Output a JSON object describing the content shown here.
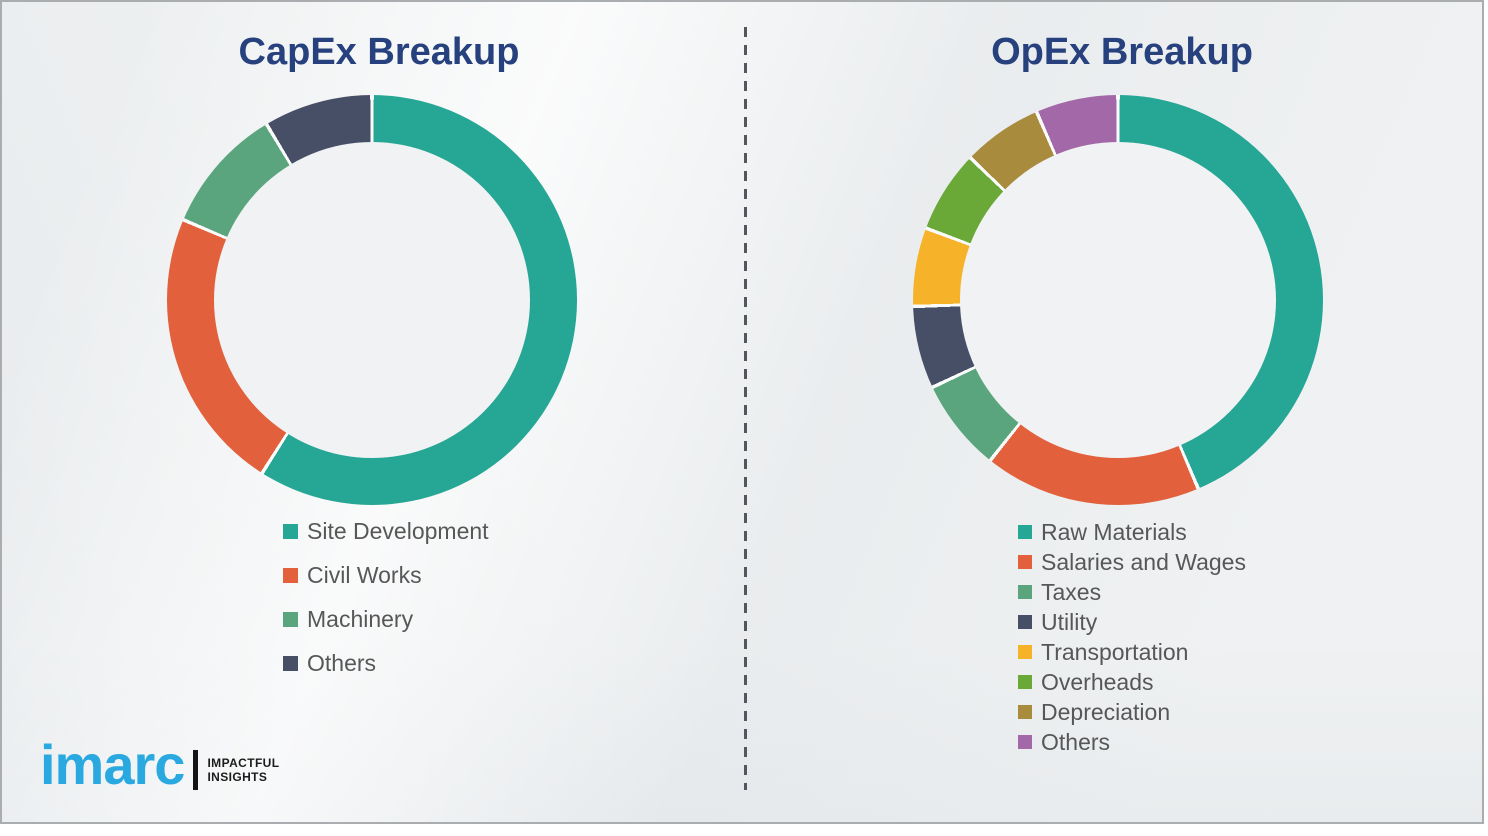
{
  "chart_data": [
    {
      "type": "pie",
      "subtype": "donut",
      "title": "CapEx Breakup",
      "labels": [
        "Site Development",
        "Civil Works",
        "Machinery",
        "Others"
      ],
      "values_pct": [
        59.0,
        22.4,
        10.0,
        8.6
      ],
      "colors": [
        "#26a695",
        "#e2603c",
        "#5aa57d",
        "#474f66"
      ],
      "start_angle_deg": 0,
      "direction": "clockwise",
      "data_labels_shown": false,
      "legend_position": "below-chart-left"
    },
    {
      "type": "pie",
      "subtype": "donut",
      "title": "OpEx Breakup",
      "labels": [
        "Raw Materials",
        "Salaries and Wages",
        "Taxes",
        "Utility",
        "Transportation",
        "Overheads",
        "Depreciation",
        "Others"
      ],
      "values_pct": [
        43.6,
        17.1,
        7.3,
        6.5,
        6.2,
        6.5,
        6.3,
        6.5
      ],
      "colors": [
        "#26a695",
        "#e2603c",
        "#5aa57d",
        "#474f66",
        "#f6b329",
        "#6aa838",
        "#a98b3e",
        "#a268a8"
      ],
      "start_angle_deg": 0,
      "direction": "clockwise",
      "data_labels_shown": false,
      "legend_position": "below-chart-left"
    }
  ],
  "logo": {
    "brand": "imarc",
    "tagline_line1": "IMPACTFUL",
    "tagline_line2": "INSIGHTS",
    "brand_color": "#2aa9e0"
  },
  "divider_style": "vertical-dashed-line"
}
